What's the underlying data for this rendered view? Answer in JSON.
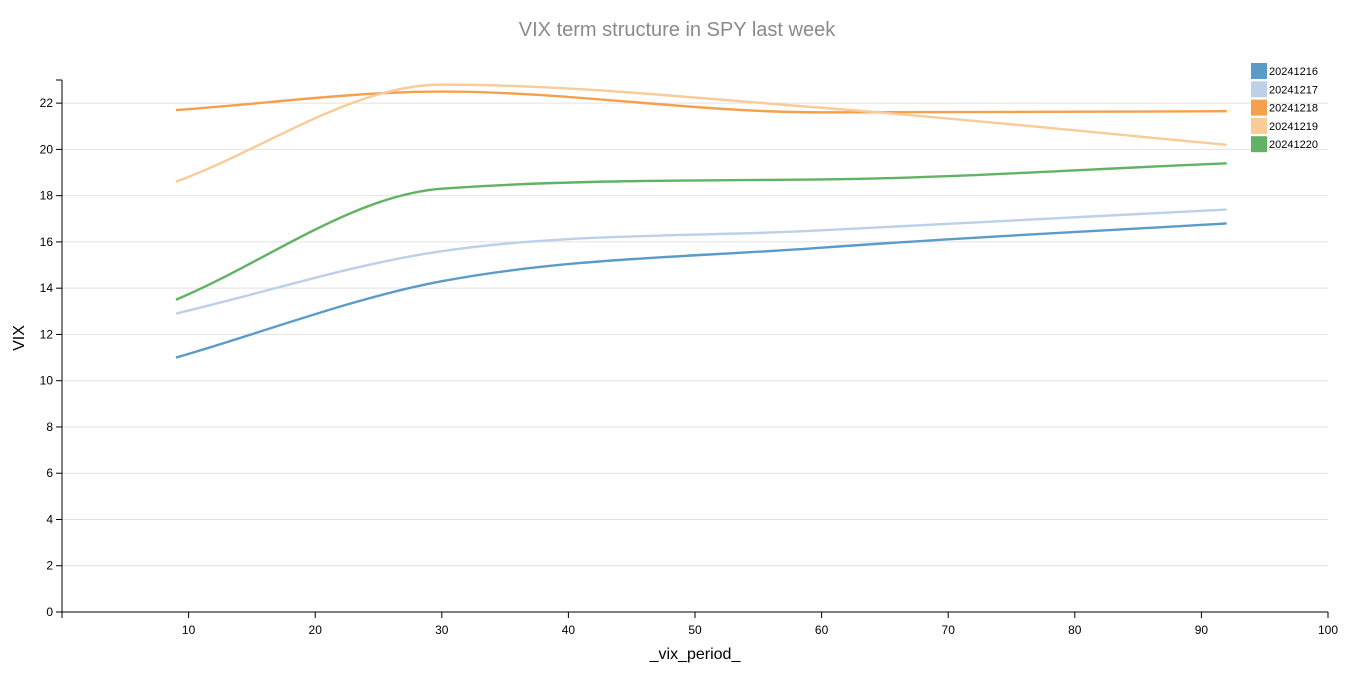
{
  "chart_data": {
    "type": "line",
    "title": "VIX term structure in SPY last week",
    "xlabel": "_vix_period_",
    "ylabel": "VIX",
    "xlim": [
      0,
      100
    ],
    "ylim": [
      0,
      23
    ],
    "xticks": [
      10,
      20,
      30,
      40,
      50,
      60,
      70,
      80,
      90,
      100
    ],
    "yticks": [
      0,
      2,
      4,
      6,
      8,
      10,
      12,
      14,
      16,
      18,
      20,
      22
    ],
    "grid": "horizontal",
    "legend_position": "top-right",
    "x": [
      9,
      30,
      60,
      92
    ],
    "series": [
      {
        "name": "20241216",
        "color": "#5b9bc8",
        "values": [
          11.0,
          14.3,
          15.75,
          16.8
        ]
      },
      {
        "name": "20241217",
        "color": "#bcd1e8",
        "values": [
          12.9,
          15.6,
          16.5,
          17.4
        ]
      },
      {
        "name": "20241218",
        "color": "#f5a04d",
        "values": [
          21.7,
          22.5,
          21.6,
          21.65
        ]
      },
      {
        "name": "20241219",
        "color": "#f9cb98",
        "values": [
          18.6,
          22.8,
          21.8,
          20.2
        ]
      },
      {
        "name": "20241220",
        "color": "#63b264",
        "values": [
          13.5,
          18.3,
          18.7,
          19.4
        ]
      }
    ]
  }
}
